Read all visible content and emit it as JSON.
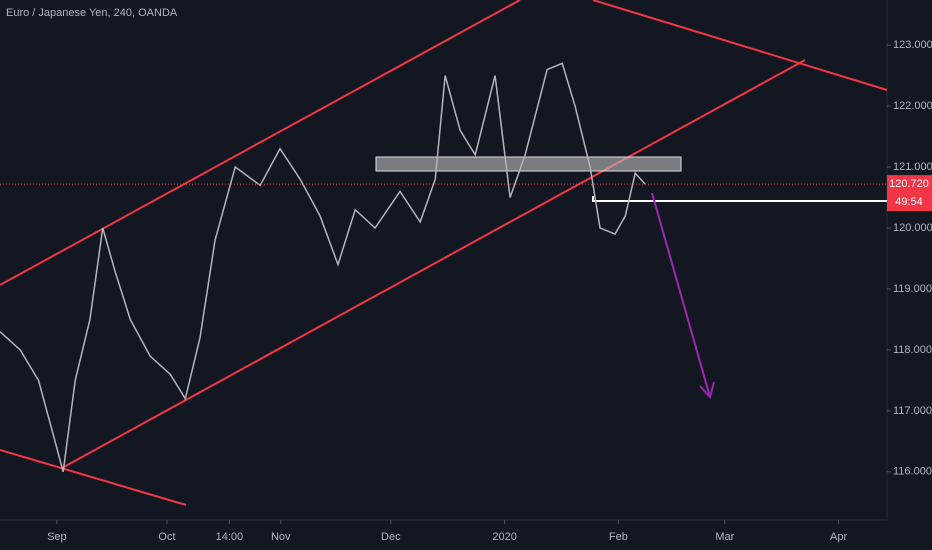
{
  "chart_data": {
    "type": "line",
    "title": "Euro / Japanese Yen, 240, OANDA",
    "x": [
      15.5,
      21,
      26,
      30.5,
      32.7,
      36,
      40,
      43.5,
      46.8,
      51,
      56.4,
      61.9,
      66,
      70,
      74.1,
      79.6,
      86.4,
      91.8,
      97.3,
      102.7,
      107.6,
      112.3,
      117.7,
      124.5,
      130,
      134.1,
      136.8,
      140.9,
      145,
      150.4,
      154.5,
      158.6,
      164.6,
      168.7,
      172.2,
      176.3,
      179,
      183.1,
      185.9,
      188.6,
      191.3
    ],
    "series": [
      {
        "color": "#b2b5be",
        "values": [
          118.3,
          118.0,
          117.5,
          116.5,
          116.0,
          117.5,
          118.5,
          120.0,
          119.3,
          118.5,
          117.9,
          117.6,
          117.2,
          118.2,
          119.8,
          121.0,
          120.7,
          121.3,
          120.8,
          120.2,
          119.4,
          120.3,
          120.0,
          120.6,
          120.1,
          120.8,
          122.5,
          121.6,
          121.2,
          122.5,
          120.5,
          121.2,
          122.6,
          122.7,
          122.0,
          121.0,
          120.0,
          119.9,
          120.2,
          120.9,
          120.72
        ]
      }
    ],
    "xlim": [
      15.5,
      257.2
    ],
    "xticks": [
      {
        "value": 31,
        "label": "Sep"
      },
      {
        "value": 61,
        "label": "Oct"
      },
      {
        "value": 78,
        "label": "14:00"
      },
      {
        "value": 92,
        "label": "Nov"
      },
      {
        "value": 122,
        "label": "Dec"
      },
      {
        "value": 153,
        "label": "2020"
      },
      {
        "value": 184,
        "label": "Feb"
      },
      {
        "value": 213,
        "label": "Mar"
      },
      {
        "value": 244,
        "label": "Apr"
      }
    ],
    "ylim": [
      115.21,
      123.74
    ],
    "yticks": [
      {
        "value": 116,
        "label": "116.000"
      },
      {
        "value": 117,
        "label": "117.000"
      },
      {
        "value": 118,
        "label": "118.000"
      },
      {
        "value": 119,
        "label": "119.000"
      },
      {
        "value": 120,
        "label": "120.000"
      },
      {
        "value": 121,
        "label": "121.000"
      },
      {
        "value": 122,
        "label": "122.000"
      },
      {
        "value": 123,
        "label": "123.000"
      }
    ],
    "current_price": {
      "value": 120.72,
      "label": "120.720",
      "color": "#f23645"
    },
    "timer": "49:54",
    "grid": false
  }
}
